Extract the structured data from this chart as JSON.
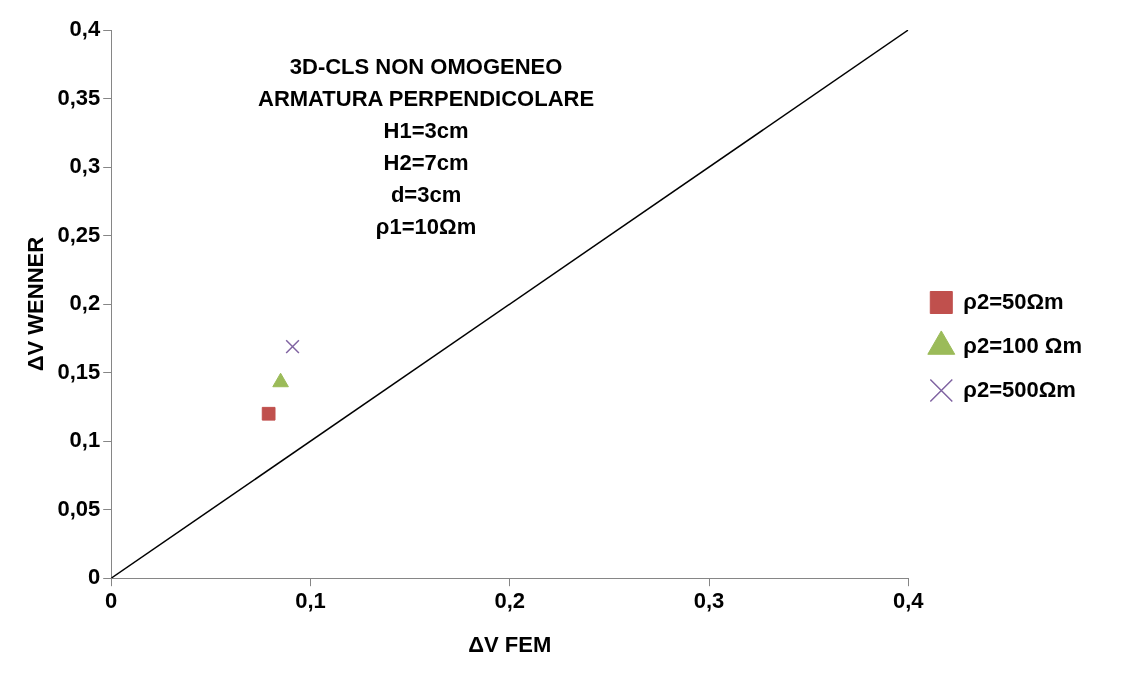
{
  "chart_data": {
    "type": "scatter",
    "xlabel": "ΔV FEM",
    "ylabel": "ΔV WENNER",
    "annotations": [
      "3D-CLS NON OMOGENEO",
      "ARMATURA PERPENDICOLARE",
      "H1=3cm",
      "H2=7cm",
      "d=3cm",
      "ρ1=10Ωm"
    ],
    "series": [
      {
        "name": "ρ2=50Ωm",
        "color": "#c0504d",
        "marker": "square",
        "x": [
          0.079
        ],
        "values": [
          0.12
        ]
      },
      {
        "name": "ρ2=100 Ωm",
        "color": "#9bbb59",
        "marker": "triangle",
        "x": [
          0.085
        ],
        "values": [
          0.143
        ]
      },
      {
        "name": "ρ2=500Ωm",
        "color": "#8064a2",
        "marker": "cross",
        "x": [
          0.091
        ],
        "values": [
          0.169
        ]
      },
      {
        "type": "line",
        "color": "#000000",
        "marker": "none",
        "x": [
          0,
          0.4
        ],
        "values": [
          0,
          0.4
        ]
      }
    ],
    "xlim": [
      0,
      0.4
    ],
    "xticks": [
      0,
      {
        "value": 0.1,
        "label": "0,1"
      },
      {
        "value": 0.2,
        "label": "0,2"
      },
      {
        "value": 0.3,
        "label": "0,3"
      },
      {
        "value": 0.4,
        "label": "0,4"
      }
    ],
    "ylim": [
      0,
      0.4
    ],
    "yticks": [
      0,
      {
        "value": 0.05,
        "label": "0,05"
      },
      {
        "value": 0.1,
        "label": "0,1"
      },
      {
        "value": 0.15,
        "label": "0,15"
      },
      {
        "value": 0.2,
        "label": "0,2"
      },
      {
        "value": 0.25,
        "label": "0,25"
      },
      {
        "value": 0.3,
        "label": "0,3"
      },
      {
        "value": 0.35,
        "label": "0,35"
      },
      {
        "value": 0.4,
        "label": "0,4"
      }
    ],
    "grid": false,
    "legend": "right"
  }
}
